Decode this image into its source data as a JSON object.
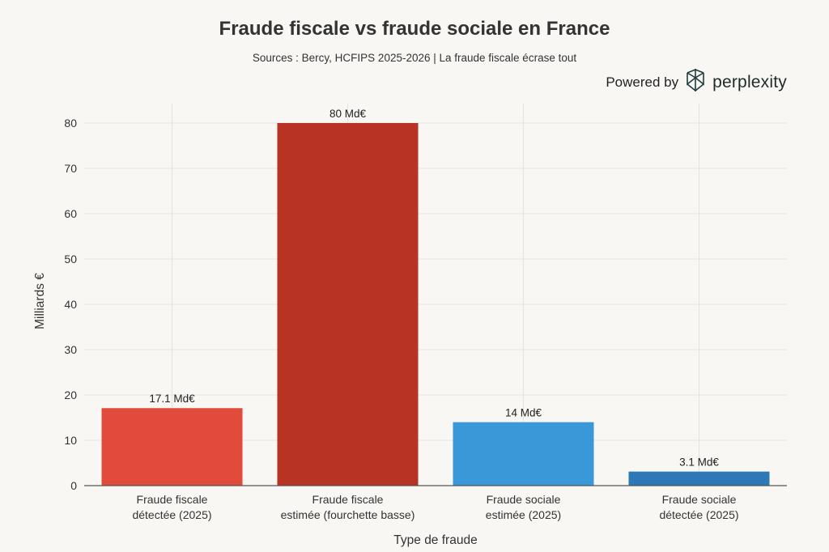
{
  "chart_data": {
    "type": "bar",
    "title": "Fraude fiscale vs fraude sociale en France",
    "subtitle": "Sources : Bercy, HCFIPS 2025-2026 | La fraude fiscale écrase tout",
    "xlabel": "Type de fraude",
    "ylabel": "Milliards €",
    "ylim": [
      0,
      84
    ],
    "yticks": [
      "0",
      "10",
      "20",
      "30",
      "40",
      "50",
      "60",
      "70",
      "80"
    ],
    "grid": true,
    "categories": [
      [
        "Fraude fiscale",
        "détectée (2025)"
      ],
      [
        "Fraude fiscale",
        "estimée (fourchette basse)"
      ],
      [
        "Fraude sociale",
        "estimée (2025)"
      ],
      [
        "Fraude sociale",
        "détectée (2025)"
      ]
    ],
    "values": [
      17.1,
      80,
      14,
      3.1
    ],
    "data_labels": [
      "17.1 Md€",
      "80 Md€",
      "14 Md€",
      "3.1 Md€"
    ],
    "colors": [
      "#e04b3c",
      "#b93324",
      "#3a97d8",
      "#2e78b7"
    ]
  },
  "branding": {
    "powered_label": "Powered by",
    "brand_name": "perplexity",
    "icon": "perplexity-logo-icon"
  }
}
